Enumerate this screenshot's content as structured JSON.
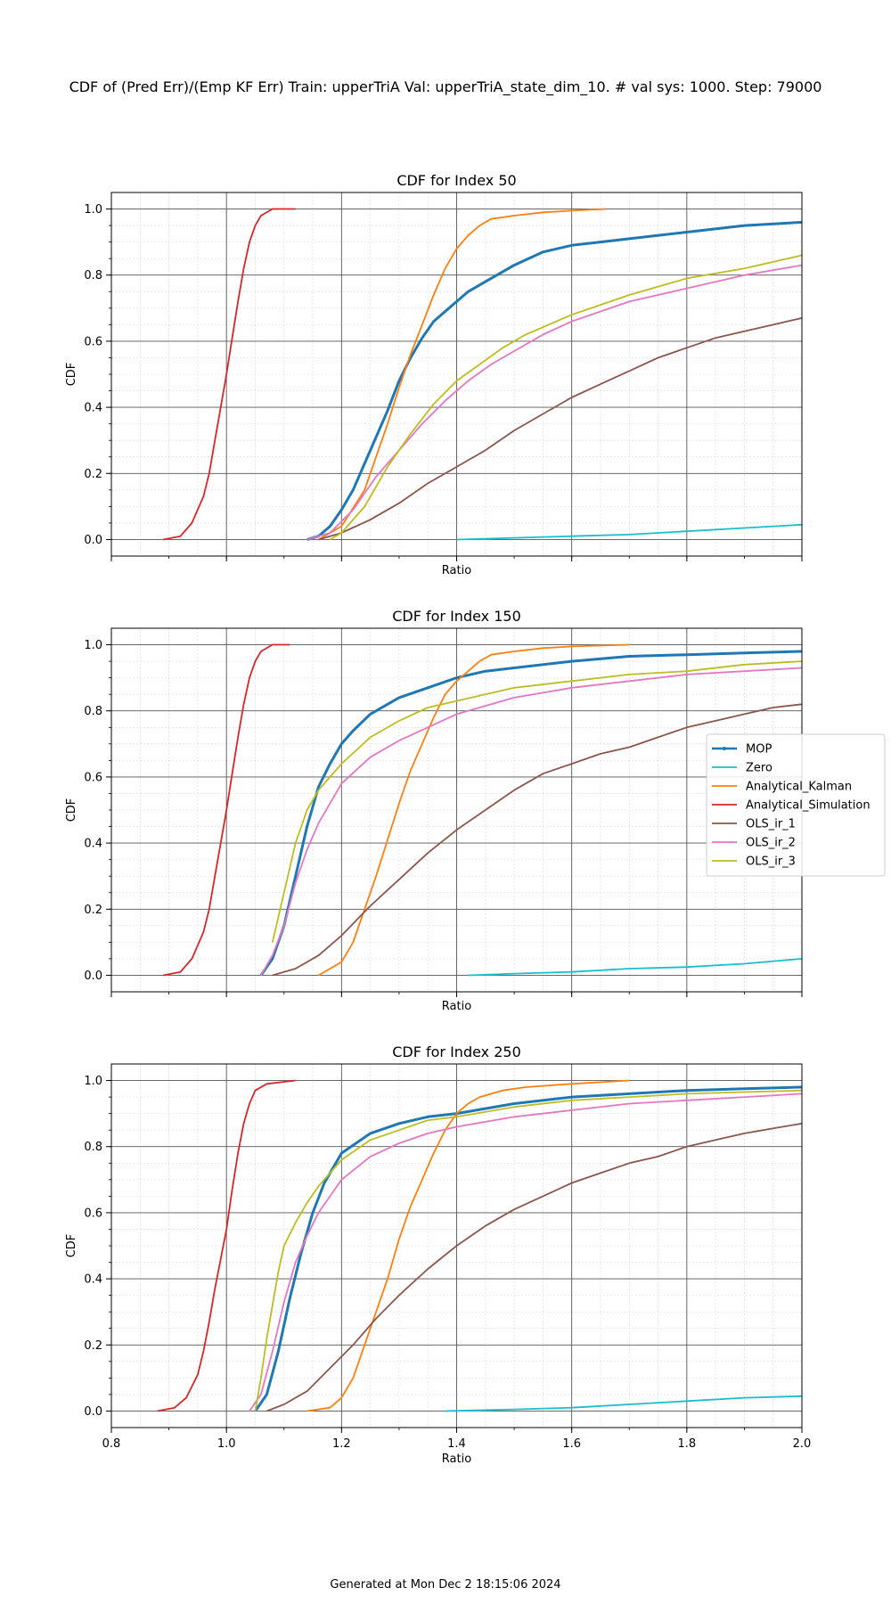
{
  "suptitle": "CDF of (Pred Err)/(Emp KF Err) Train: upperTriA Val: upperTriA_state_dim_10. # val sys: 1000. Step: 79000",
  "footer": "Generated at Mon Dec  2 18:15:06 2024",
  "colors": {
    "MOP": "#1f77b4",
    "Zero": "#17becf",
    "Analytical_Kalman": "#ff7f0e",
    "Analytical_Simulation": "#d62728",
    "OLS_ir_1": "#8c564b",
    "OLS_ir_2": "#e377c2",
    "OLS_ir_3": "#bcbd22"
  },
  "legend": {
    "placement": "right of middle panel",
    "entries": [
      "MOP",
      "Zero",
      "Analytical_Kalman",
      "Analytical_Simulation",
      "OLS_ir_1",
      "OLS_ir_2",
      "OLS_ir_3"
    ]
  },
  "chart_data": [
    {
      "type": "line",
      "title": "CDF for Index 50",
      "xlabel": "Ratio",
      "ylabel": "CDF",
      "xlim": [
        0.8,
        2.0
      ],
      "ylim": [
        -0.05,
        1.05
      ],
      "xticks": [
        0.8,
        1.0,
        1.2,
        1.4,
        1.6,
        1.8,
        2.0
      ],
      "show_xtick_labels": false,
      "yticks": [
        "0.0",
        "0.2",
        "0.4",
        "0.6",
        "0.8",
        "1.0"
      ],
      "grid": "major and minor",
      "series": [
        {
          "name": "Analytical_Simulation",
          "x": [
            0.89,
            0.92,
            0.94,
            0.96,
            0.97,
            0.98,
            0.99,
            1.0,
            1.01,
            1.02,
            1.03,
            1.04,
            1.05,
            1.06,
            1.08,
            1.12
          ],
          "y": [
            0.0,
            0.01,
            0.05,
            0.13,
            0.2,
            0.3,
            0.4,
            0.5,
            0.61,
            0.72,
            0.82,
            0.9,
            0.95,
            0.98,
            1.0,
            1.0
          ]
        },
        {
          "name": "MOP",
          "x": [
            1.14,
            1.16,
            1.18,
            1.2,
            1.22,
            1.24,
            1.26,
            1.28,
            1.3,
            1.32,
            1.34,
            1.36,
            1.38,
            1.4,
            1.42,
            1.45,
            1.5,
            1.55,
            1.6,
            1.65,
            1.7,
            1.8,
            1.9,
            2.0
          ],
          "y": [
            0.0,
            0.01,
            0.04,
            0.09,
            0.15,
            0.23,
            0.31,
            0.39,
            0.48,
            0.55,
            0.61,
            0.66,
            0.69,
            0.72,
            0.75,
            0.78,
            0.83,
            0.87,
            0.89,
            0.9,
            0.91,
            0.93,
            0.95,
            0.96
          ]
        },
        {
          "name": "Zero",
          "x": [
            1.4,
            1.5,
            1.6,
            1.7,
            1.8,
            1.9,
            2.0
          ],
          "y": [
            0.0,
            0.005,
            0.01,
            0.015,
            0.025,
            0.035,
            0.045
          ]
        },
        {
          "name": "Analytical_Kalman",
          "x": [
            1.16,
            1.2,
            1.24,
            1.28,
            1.3,
            1.32,
            1.34,
            1.36,
            1.38,
            1.4,
            1.42,
            1.44,
            1.46,
            1.5,
            1.55,
            1.6,
            1.66
          ],
          "y": [
            0.0,
            0.04,
            0.15,
            0.35,
            0.46,
            0.56,
            0.65,
            0.74,
            0.82,
            0.88,
            0.92,
            0.95,
            0.97,
            0.98,
            0.99,
            0.995,
            1.0
          ]
        },
        {
          "name": "OLS_ir_1",
          "x": [
            1.16,
            1.2,
            1.25,
            1.3,
            1.35,
            1.4,
            1.45,
            1.5,
            1.55,
            1.6,
            1.65,
            1.7,
            1.75,
            1.8,
            1.85,
            1.9,
            1.95,
            2.0
          ],
          "y": [
            0.0,
            0.02,
            0.06,
            0.11,
            0.17,
            0.22,
            0.27,
            0.33,
            0.38,
            0.43,
            0.47,
            0.51,
            0.55,
            0.58,
            0.61,
            0.63,
            0.65,
            0.67
          ]
        },
        {
          "name": "OLS_ir_2",
          "x": [
            1.14,
            1.18,
            1.22,
            1.26,
            1.3,
            1.34,
            1.38,
            1.42,
            1.46,
            1.5,
            1.55,
            1.6,
            1.65,
            1.7,
            1.8,
            1.9,
            2.0
          ],
          "y": [
            0.0,
            0.02,
            0.09,
            0.19,
            0.27,
            0.35,
            0.42,
            0.48,
            0.53,
            0.57,
            0.62,
            0.66,
            0.69,
            0.72,
            0.76,
            0.8,
            0.83
          ]
        },
        {
          "name": "OLS_ir_3",
          "x": [
            1.18,
            1.2,
            1.24,
            1.28,
            1.32,
            1.36,
            1.4,
            1.44,
            1.48,
            1.52,
            1.56,
            1.6,
            1.65,
            1.7,
            1.8,
            1.9,
            2.0
          ],
          "y": [
            0.0,
            0.02,
            0.1,
            0.22,
            0.32,
            0.41,
            0.48,
            0.53,
            0.58,
            0.62,
            0.65,
            0.68,
            0.71,
            0.74,
            0.79,
            0.82,
            0.86
          ]
        }
      ]
    },
    {
      "type": "line",
      "title": "CDF for Index 150",
      "xlabel": "Ratio",
      "ylabel": "CDF",
      "xlim": [
        0.8,
        2.0
      ],
      "ylim": [
        -0.05,
        1.05
      ],
      "xticks": [
        0.8,
        1.0,
        1.2,
        1.4,
        1.6,
        1.8,
        2.0
      ],
      "show_xtick_labels": false,
      "yticks": [
        "0.0",
        "0.2",
        "0.4",
        "0.6",
        "0.8",
        "1.0"
      ],
      "grid": "major and minor",
      "series": [
        {
          "name": "Analytical_Simulation",
          "x": [
            0.89,
            0.92,
            0.94,
            0.96,
            0.97,
            0.98,
            0.99,
            1.0,
            1.01,
            1.02,
            1.03,
            1.04,
            1.05,
            1.06,
            1.08,
            1.11
          ],
          "y": [
            0.0,
            0.01,
            0.05,
            0.13,
            0.2,
            0.3,
            0.4,
            0.5,
            0.61,
            0.72,
            0.82,
            0.9,
            0.95,
            0.98,
            1.0,
            1.0
          ]
        },
        {
          "name": "MOP",
          "x": [
            1.06,
            1.08,
            1.1,
            1.12,
            1.14,
            1.16,
            1.18,
            1.2,
            1.22,
            1.25,
            1.3,
            1.35,
            1.4,
            1.45,
            1.5,
            1.6,
            1.7,
            1.8,
            1.9,
            2.0
          ],
          "y": [
            0.0,
            0.05,
            0.15,
            0.3,
            0.45,
            0.57,
            0.64,
            0.7,
            0.74,
            0.79,
            0.84,
            0.87,
            0.9,
            0.92,
            0.93,
            0.95,
            0.965,
            0.97,
            0.975,
            0.98
          ]
        },
        {
          "name": "Zero",
          "x": [
            1.42,
            1.5,
            1.6,
            1.7,
            1.8,
            1.9,
            2.0
          ],
          "y": [
            0.0,
            0.005,
            0.01,
            0.02,
            0.025,
            0.035,
            0.05
          ]
        },
        {
          "name": "Analytical_Kalman",
          "x": [
            1.16,
            1.2,
            1.22,
            1.24,
            1.26,
            1.28,
            1.3,
            1.32,
            1.34,
            1.36,
            1.38,
            1.4,
            1.42,
            1.44,
            1.46,
            1.5,
            1.55,
            1.6,
            1.7
          ],
          "y": [
            0.0,
            0.04,
            0.1,
            0.2,
            0.3,
            0.41,
            0.52,
            0.62,
            0.7,
            0.78,
            0.85,
            0.89,
            0.92,
            0.95,
            0.97,
            0.98,
            0.99,
            0.995,
            1.0
          ]
        },
        {
          "name": "OLS_ir_1",
          "x": [
            1.08,
            1.12,
            1.16,
            1.2,
            1.25,
            1.3,
            1.35,
            1.4,
            1.45,
            1.5,
            1.55,
            1.6,
            1.65,
            1.7,
            1.75,
            1.8,
            1.85,
            1.9,
            1.95,
            2.0
          ],
          "y": [
            0.0,
            0.02,
            0.06,
            0.12,
            0.21,
            0.29,
            0.37,
            0.44,
            0.5,
            0.56,
            0.61,
            0.64,
            0.67,
            0.69,
            0.72,
            0.75,
            0.77,
            0.79,
            0.81,
            0.82
          ]
        },
        {
          "name": "OLS_ir_2",
          "x": [
            1.06,
            1.08,
            1.1,
            1.12,
            1.14,
            1.16,
            1.18,
            1.2,
            1.25,
            1.3,
            1.35,
            1.4,
            1.5,
            1.6,
            1.7,
            1.8,
            1.9,
            2.0
          ],
          "y": [
            0.0,
            0.06,
            0.15,
            0.28,
            0.38,
            0.46,
            0.52,
            0.58,
            0.66,
            0.71,
            0.75,
            0.79,
            0.84,
            0.87,
            0.89,
            0.91,
            0.92,
            0.93
          ]
        },
        {
          "name": "OLS_ir_3",
          "x": [
            1.08,
            1.1,
            1.12,
            1.14,
            1.16,
            1.18,
            1.2,
            1.25,
            1.3,
            1.35,
            1.4,
            1.5,
            1.6,
            1.7,
            1.8,
            1.9,
            2.0
          ],
          "y": [
            0.1,
            0.25,
            0.4,
            0.5,
            0.56,
            0.6,
            0.64,
            0.72,
            0.77,
            0.81,
            0.83,
            0.87,
            0.89,
            0.91,
            0.92,
            0.94,
            0.95
          ]
        }
      ]
    },
    {
      "type": "line",
      "title": "CDF for Index 250",
      "xlabel": "Ratio",
      "ylabel": "CDF",
      "xlim": [
        0.8,
        2.0
      ],
      "ylim": [
        -0.05,
        1.05
      ],
      "xticks": [
        0.8,
        1.0,
        1.2,
        1.4,
        1.6,
        1.8,
        2.0
      ],
      "xticklabels": [
        "0.8",
        "1.0",
        "1.2",
        "1.4",
        "1.6",
        "1.8",
        "2.0"
      ],
      "show_xtick_labels": true,
      "yticks": [
        "0.0",
        "0.2",
        "0.4",
        "0.6",
        "0.8",
        "1.0"
      ],
      "grid": "major and minor",
      "series": [
        {
          "name": "Analytical_Simulation",
          "x": [
            0.88,
            0.91,
            0.93,
            0.95,
            0.96,
            0.97,
            0.98,
            0.99,
            1.0,
            1.01,
            1.02,
            1.03,
            1.04,
            1.05,
            1.07,
            1.12
          ],
          "y": [
            0.0,
            0.01,
            0.04,
            0.11,
            0.18,
            0.27,
            0.37,
            0.46,
            0.55,
            0.67,
            0.78,
            0.87,
            0.93,
            0.97,
            0.99,
            1.0
          ]
        },
        {
          "name": "MOP",
          "x": [
            1.05,
            1.07,
            1.09,
            1.11,
            1.13,
            1.15,
            1.17,
            1.2,
            1.25,
            1.3,
            1.35,
            1.4,
            1.5,
            1.6,
            1.7,
            1.8,
            1.9,
            2.0
          ],
          "y": [
            0.0,
            0.05,
            0.18,
            0.34,
            0.48,
            0.6,
            0.69,
            0.78,
            0.84,
            0.87,
            0.89,
            0.9,
            0.93,
            0.95,
            0.96,
            0.97,
            0.975,
            0.98
          ]
        },
        {
          "name": "Zero",
          "x": [
            1.38,
            1.5,
            1.6,
            1.7,
            1.8,
            1.9,
            2.0
          ],
          "y": [
            0.0,
            0.005,
            0.01,
            0.02,
            0.03,
            0.04,
            0.045
          ]
        },
        {
          "name": "Analytical_Kalman",
          "x": [
            1.14,
            1.18,
            1.2,
            1.22,
            1.24,
            1.26,
            1.28,
            1.3,
            1.32,
            1.34,
            1.36,
            1.38,
            1.4,
            1.42,
            1.44,
            1.48,
            1.52,
            1.6,
            1.7
          ],
          "y": [
            0.0,
            0.01,
            0.04,
            0.1,
            0.2,
            0.3,
            0.4,
            0.52,
            0.62,
            0.7,
            0.78,
            0.85,
            0.9,
            0.93,
            0.95,
            0.97,
            0.98,
            0.99,
            1.0
          ]
        },
        {
          "name": "OLS_ir_1",
          "x": [
            1.07,
            1.1,
            1.14,
            1.18,
            1.22,
            1.26,
            1.3,
            1.35,
            1.4,
            1.45,
            1.5,
            1.55,
            1.6,
            1.65,
            1.7,
            1.75,
            1.8,
            1.85,
            1.9,
            1.95,
            2.0
          ],
          "y": [
            0.0,
            0.02,
            0.06,
            0.13,
            0.2,
            0.28,
            0.35,
            0.43,
            0.5,
            0.56,
            0.61,
            0.65,
            0.69,
            0.72,
            0.75,
            0.77,
            0.8,
            0.82,
            0.84,
            0.855,
            0.87
          ]
        },
        {
          "name": "OLS_ir_2",
          "x": [
            1.04,
            1.06,
            1.08,
            1.1,
            1.12,
            1.14,
            1.16,
            1.18,
            1.2,
            1.25,
            1.3,
            1.35,
            1.4,
            1.5,
            1.6,
            1.7,
            1.8,
            1.9,
            2.0
          ],
          "y": [
            0.0,
            0.05,
            0.18,
            0.33,
            0.45,
            0.53,
            0.6,
            0.65,
            0.7,
            0.77,
            0.81,
            0.84,
            0.86,
            0.89,
            0.91,
            0.93,
            0.94,
            0.95,
            0.96
          ]
        },
        {
          "name": "OLS_ir_3",
          "x": [
            1.05,
            1.06,
            1.07,
            1.08,
            1.09,
            1.1,
            1.12,
            1.14,
            1.16,
            1.18,
            1.2,
            1.25,
            1.3,
            1.35,
            1.4,
            1.5,
            1.6,
            1.7,
            1.8,
            1.9,
            2.0
          ],
          "y": [
            0.0,
            0.1,
            0.22,
            0.32,
            0.42,
            0.5,
            0.57,
            0.63,
            0.68,
            0.72,
            0.76,
            0.82,
            0.85,
            0.88,
            0.89,
            0.92,
            0.94,
            0.95,
            0.96,
            0.965,
            0.97
          ]
        }
      ]
    }
  ]
}
